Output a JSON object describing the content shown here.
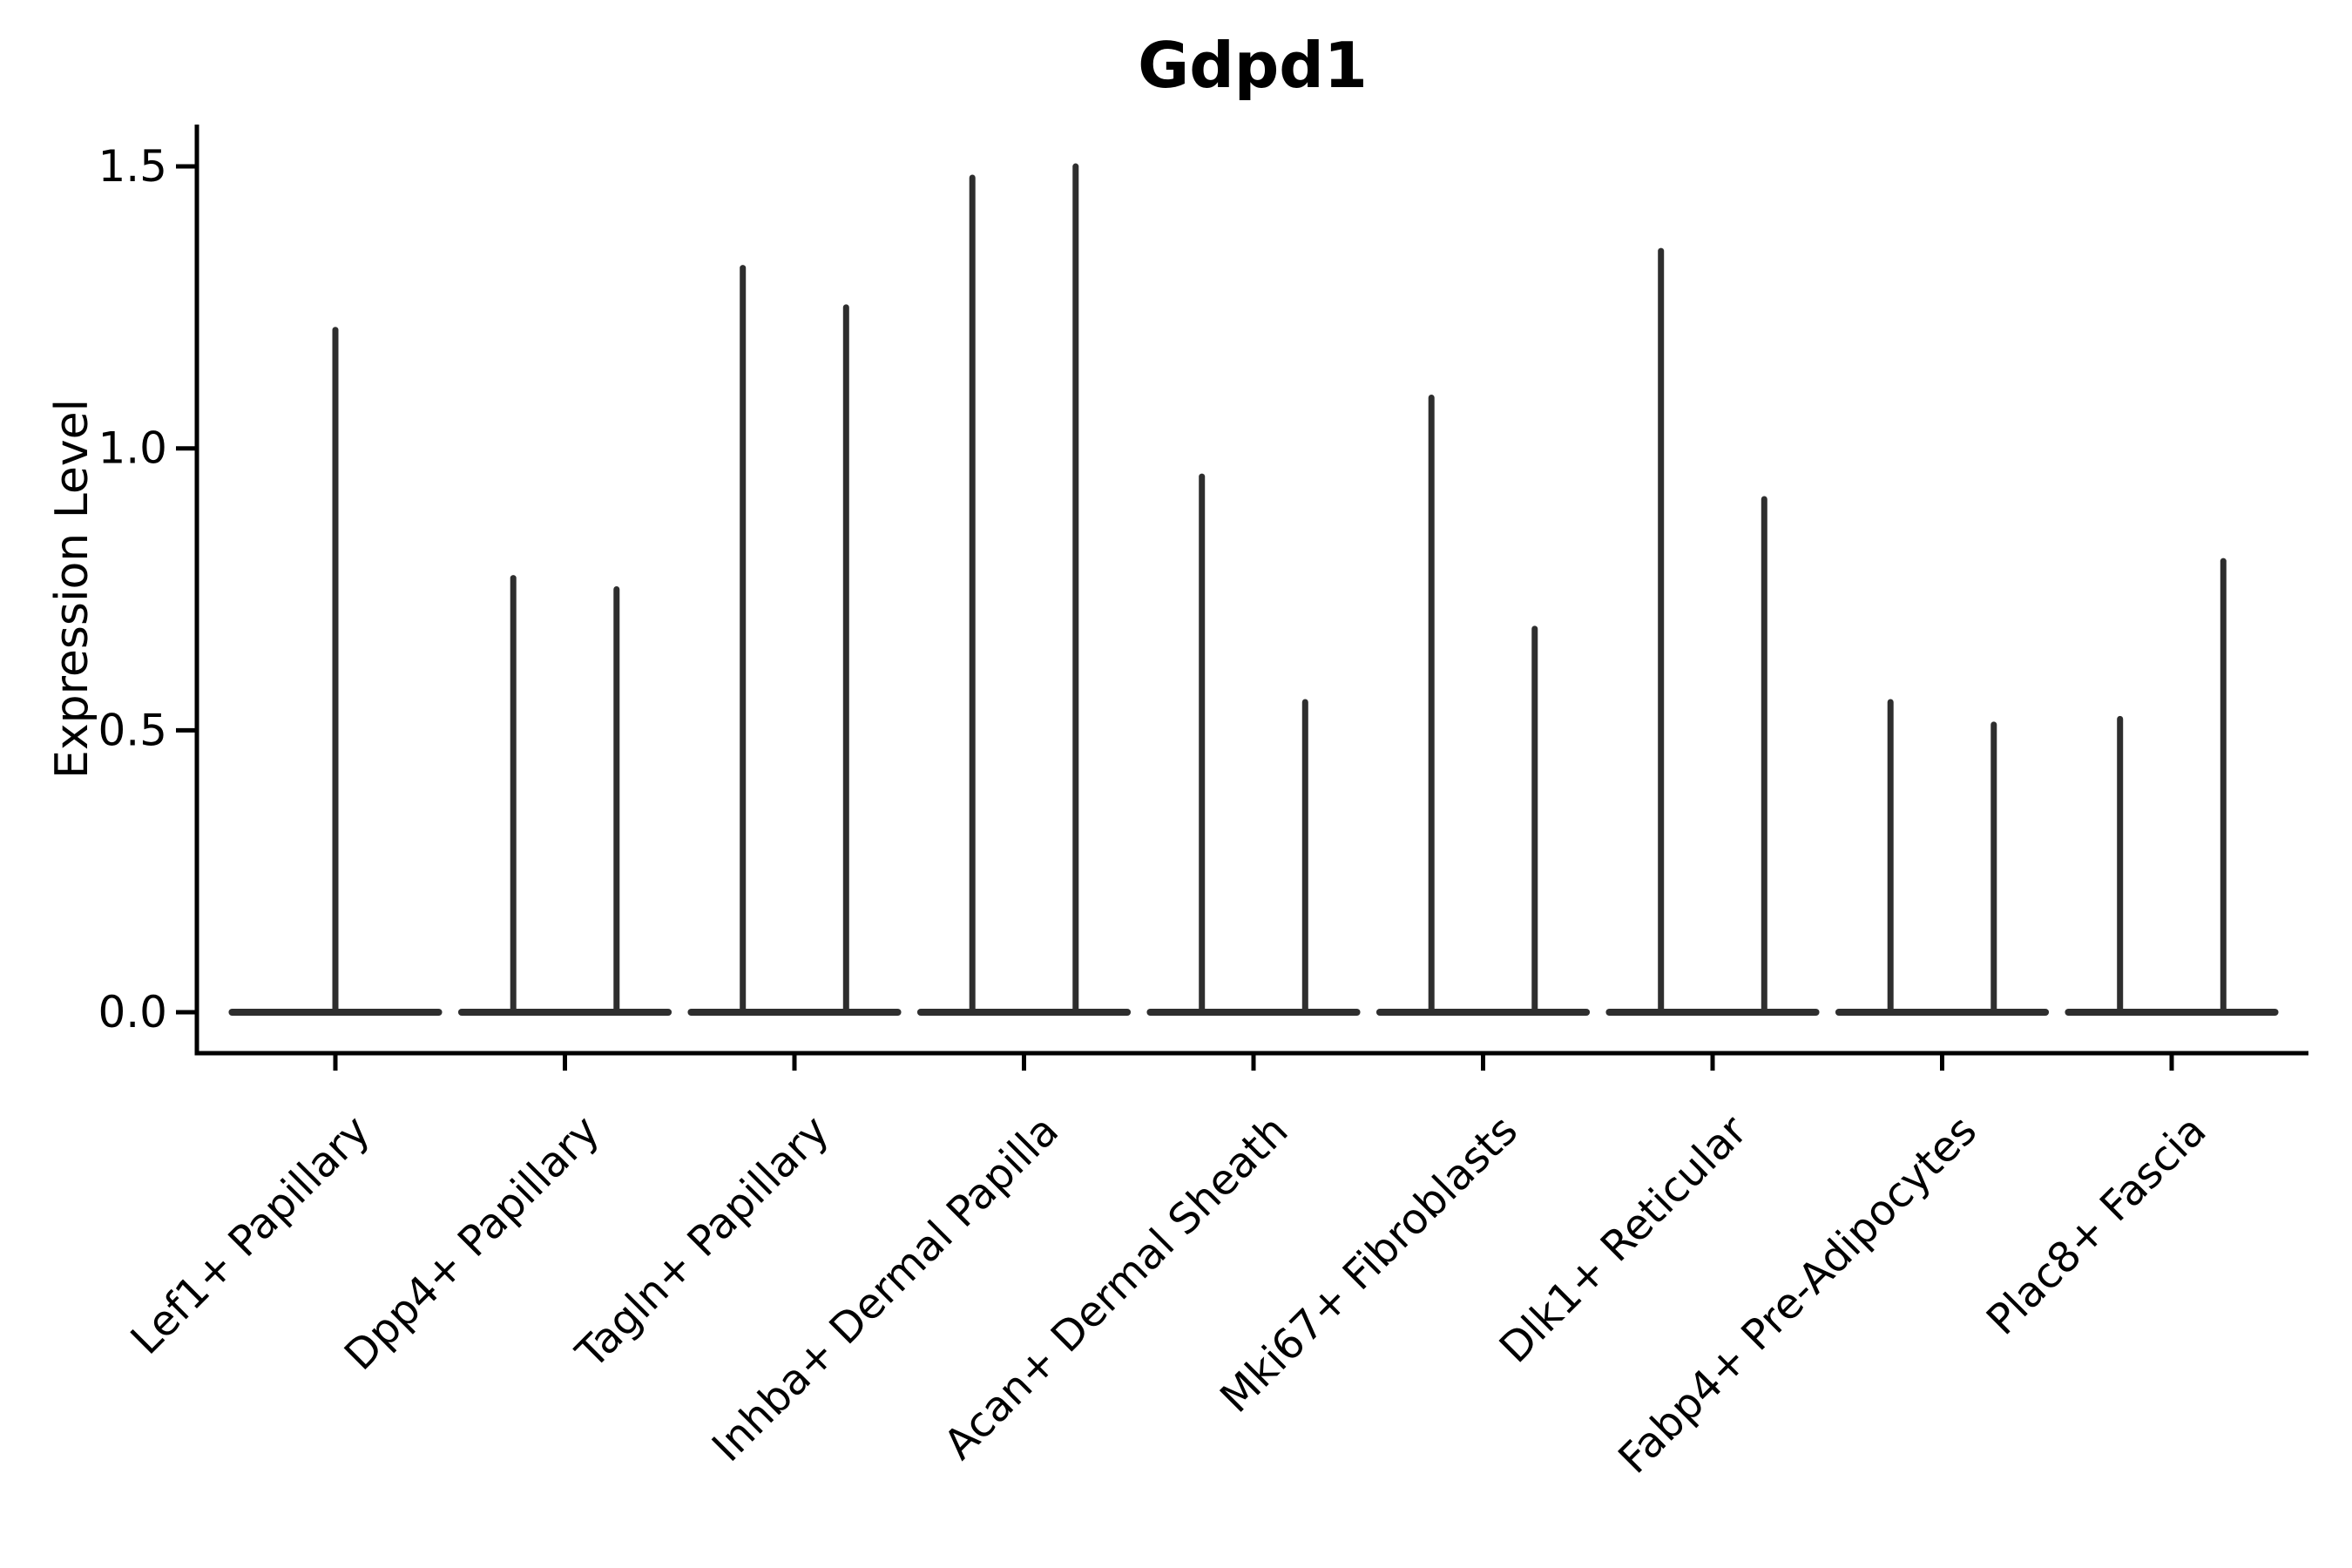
{
  "chart_data": {
    "type": "violin",
    "title": "Gdpd1",
    "ylabel": "Expression Level",
    "xlabel": "",
    "grid": false,
    "legend": null,
    "background": "#ffffff",
    "ylim": [
      -0.07,
      1.62
    ],
    "yticks": [
      {
        "value": 0.0,
        "label": "0.0"
      },
      {
        "value": 0.5,
        "label": "0.5"
      },
      {
        "value": 1.0,
        "label": "1.0"
      },
      {
        "value": 1.5,
        "label": "1.5"
      }
    ],
    "categories": [
      "Lef1+ Papillary",
      "Dpp4+ Papillary",
      "Tagln+ Papillary",
      "Inhba+ Dermal Papilla",
      "Acan+ Dermal Sheath",
      "Mki67+ Fibroblasts",
      "Dlk1+ Reticular",
      "Fabp4+ Pre-Adipocytes",
      "Plac8+ Fascia"
    ],
    "violin_width": 0.9,
    "violins": [
      {
        "category": "Lef1+ Papillary",
        "spikes": [
          {
            "offset": 0.0,
            "max": 1.21
          }
        ]
      },
      {
        "category": "Dpp4+ Papillary",
        "spikes": [
          {
            "offset": -0.225,
            "max": 0.77
          },
          {
            "offset": 0.225,
            "max": 0.75
          }
        ]
      },
      {
        "category": "Tagln+ Papillary",
        "spikes": [
          {
            "offset": -0.225,
            "max": 1.32
          },
          {
            "offset": 0.225,
            "max": 1.25
          }
        ]
      },
      {
        "category": "Inhba+ Dermal Papilla",
        "spikes": [
          {
            "offset": -0.225,
            "max": 1.48
          },
          {
            "offset": 0.225,
            "max": 1.5
          }
        ]
      },
      {
        "category": "Acan+ Dermal Sheath",
        "spikes": [
          {
            "offset": -0.225,
            "max": 0.95
          },
          {
            "offset": 0.225,
            "max": 0.55
          }
        ]
      },
      {
        "category": "Mki67+ Fibroblasts",
        "spikes": [
          {
            "offset": -0.225,
            "max": 1.09
          },
          {
            "offset": 0.225,
            "max": 0.68
          }
        ]
      },
      {
        "category": "Dlk1+ Reticular",
        "spikes": [
          {
            "offset": -0.225,
            "max": 1.35
          },
          {
            "offset": 0.225,
            "max": 0.91
          }
        ]
      },
      {
        "category": "Fabp4+ Pre-Adipocytes",
        "spikes": [
          {
            "offset": -0.225,
            "max": 0.55
          },
          {
            "offset": 0.225,
            "max": 0.51
          }
        ]
      },
      {
        "category": "Plac8+ Fascia",
        "spikes": [
          {
            "offset": -0.225,
            "max": 0.52
          },
          {
            "offset": 0.225,
            "max": 0.8
          }
        ]
      }
    ],
    "colors": {
      "violin_line": "#2e2e2e",
      "axis": "#000000",
      "text": "#000000",
      "background": "#ffffff"
    }
  }
}
